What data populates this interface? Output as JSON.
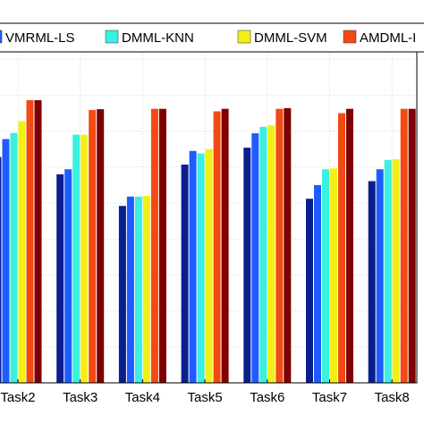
{
  "chart_data": {
    "type": "bar",
    "title": "",
    "xlabel": "",
    "ylabel": "",
    "categories": [
      "Task2",
      "Task3",
      "Task4",
      "Task5",
      "Task6",
      "Task7",
      "Task8"
    ],
    "ylim": [
      0,
      1
    ],
    "grid": true,
    "legend_position": "top",
    "series": [
      {
        "color": "#0a1f8f",
        "values": [
          0.628,
          0.58,
          0.492,
          0.607,
          0.654,
          0.512,
          0.561
        ]
      },
      {
        "name": "VMRML-LS",
        "color": "#1f5cff",
        "values": [
          0.678,
          0.594,
          0.518,
          0.645,
          0.694,
          0.55,
          0.594
        ]
      },
      {
        "name": "DMML-KNN",
        "color": "#3af0e0",
        "values": [
          0.695,
          0.69,
          0.518,
          0.638,
          0.712,
          0.594,
          0.62
        ]
      },
      {
        "name": "DMML-SVM",
        "color": "#f0f016",
        "values": [
          0.728,
          0.69,
          0.52,
          0.65,
          0.716,
          0.596,
          0.622
        ]
      },
      {
        "name": "AMDML-I",
        "color": "#f24a12",
        "values": [
          0.786,
          0.759,
          0.762,
          0.755,
          0.762,
          0.75,
          0.762
        ]
      },
      {
        "color": "#7f0000",
        "values": [
          0.786,
          0.761,
          0.762,
          0.762,
          0.764,
          0.762,
          0.762
        ]
      }
    ]
  }
}
